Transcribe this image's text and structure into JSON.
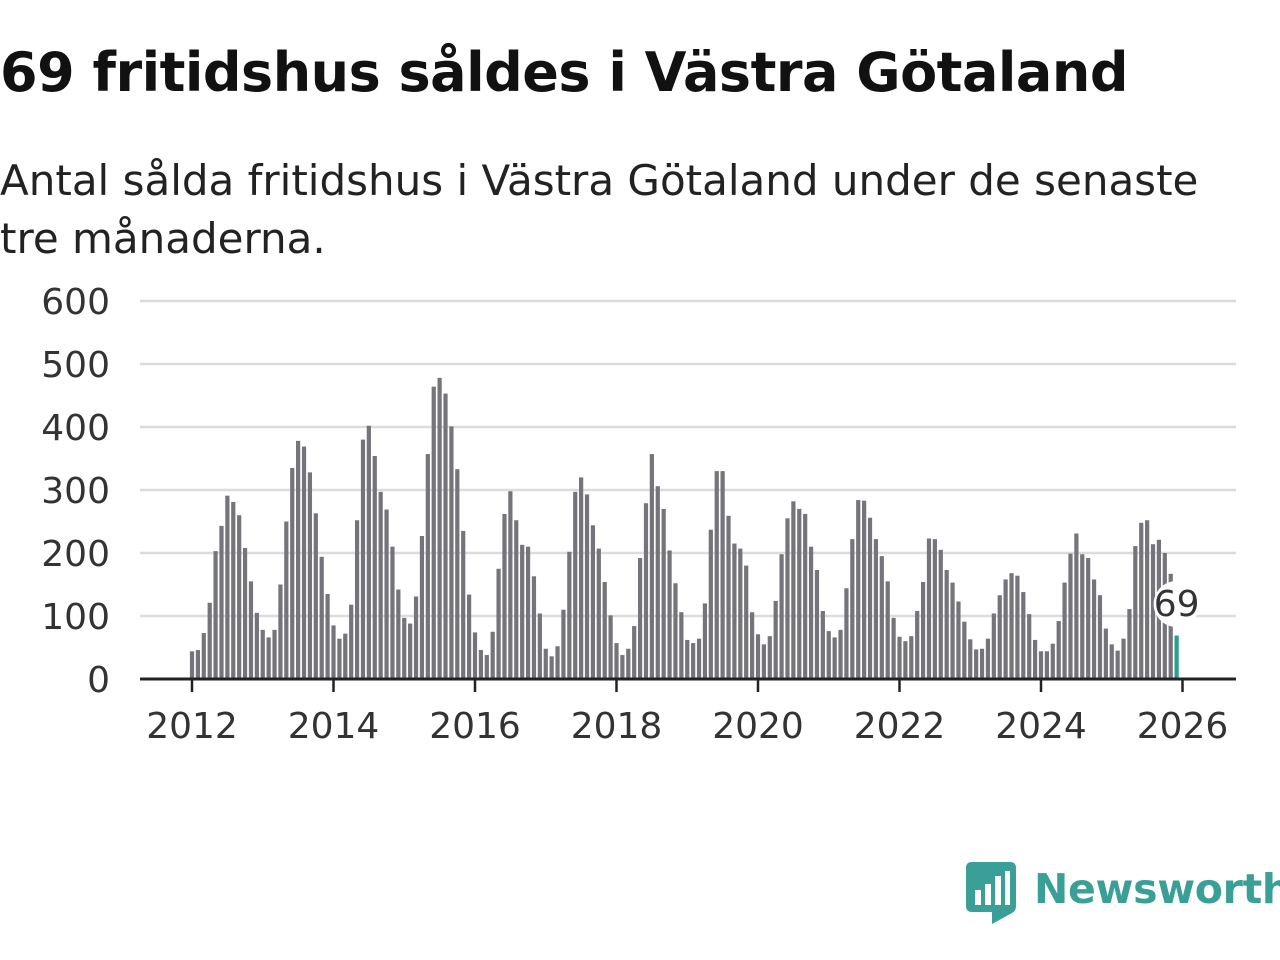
{
  "header": {
    "title": "69 fritidshus såldes i Västra Götaland",
    "subtitle": "Antal sålda fritidshus i Västra Götaland under de senaste tre månaderna."
  },
  "brand": {
    "name": "Newsworthy",
    "color": "#3aa097"
  },
  "colors": {
    "bar": "#74747a",
    "highlight": "#2a9d8f",
    "grid": "#dcdcdc",
    "axis": "#222222"
  },
  "chart_data": {
    "type": "bar",
    "title": "69 fritidshus såldes i Västra Götaland",
    "subtitle": "Antal sålda fritidshus i Västra Götaland under de senaste tre månaderna.",
    "xlabel": "",
    "ylabel": "",
    "start": "2012-01",
    "frequency": "monthly",
    "ylim": [
      0,
      600
    ],
    "yticks": [
      0,
      100,
      200,
      300,
      400,
      500,
      600
    ],
    "xticks": [
      "2012",
      "2014",
      "2016",
      "2018",
      "2020",
      "2022",
      "2024",
      "2026"
    ],
    "grid": true,
    "highlight_label": "69",
    "values": [
      44,
      46,
      73,
      121,
      203,
      243,
      291,
      281,
      260,
      208,
      155,
      105,
      78,
      66,
      78,
      150,
      250,
      335,
      378,
      369,
      328,
      263,
      194,
      135,
      85,
      64,
      72,
      118,
      252,
      380,
      402,
      354,
      297,
      269,
      210,
      142,
      97,
      88,
      131,
      227,
      357,
      464,
      478,
      453,
      401,
      333,
      235,
      134,
      74,
      46,
      38,
      75,
      175,
      262,
      298,
      252,
      213,
      210,
      163,
      104,
      48,
      36,
      52,
      110,
      202,
      297,
      320,
      293,
      244,
      207,
      154,
      101,
      57,
      38,
      48,
      84,
      192,
      279,
      357,
      306,
      270,
      204,
      152,
      106,
      62,
      57,
      64,
      120,
      237,
      330,
      330,
      259,
      215,
      207,
      180,
      106,
      71,
      55,
      68,
      124,
      198,
      255,
      282,
      270,
      262,
      210,
      173,
      108,
      76,
      66,
      78,
      144,
      222,
      284,
      283,
      256,
      222,
      195,
      155,
      97,
      67,
      60,
      68,
      108,
      154,
      223,
      222,
      205,
      173,
      153,
      123,
      91,
      63,
      47,
      48,
      64,
      104,
      133,
      158,
      168,
      164,
      138,
      103,
      62,
      44,
      44,
      56,
      92,
      153,
      199,
      231,
      198,
      192,
      158,
      133,
      80,
      55,
      45,
      64,
      111,
      211,
      248,
      252,
      214,
      221,
      200,
      167,
      69
    ]
  }
}
